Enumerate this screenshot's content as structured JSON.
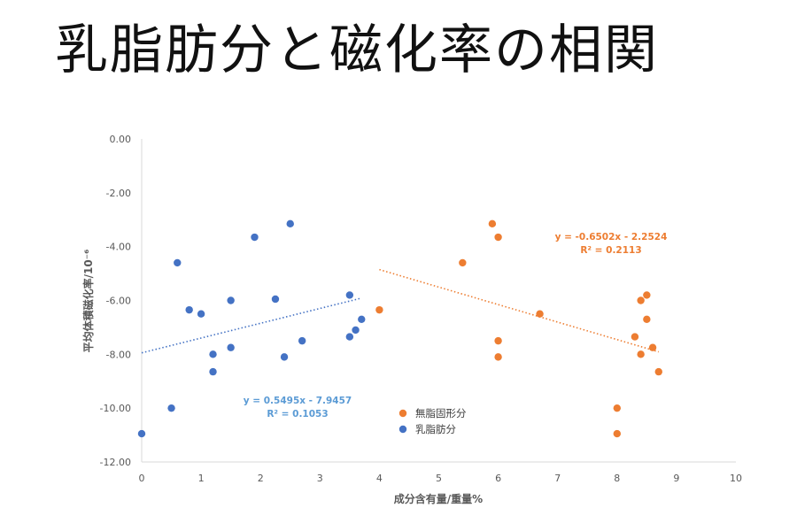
{
  "title": "乳脂肪分と磁化率の相関",
  "colors": {
    "series_milkfat": "#4472C4",
    "series_snf": "#ED7D31",
    "trend_milkfat_label": "#5B9BD5",
    "trend_snf_label": "#ED7D31",
    "axis": "#d9d9d9",
    "text": "#595959"
  },
  "chart_data": {
    "type": "scatter",
    "xlabel": "成分含有量/重量%",
    "ylabel": "平均体積磁化率/10⁻⁶",
    "xlim": [
      0,
      10
    ],
    "ylim": [
      -12,
      0
    ],
    "x_ticks": [
      "0",
      "1",
      "2",
      "3",
      "4",
      "5",
      "6",
      "7",
      "8",
      "9",
      "10"
    ],
    "y_ticks": [
      "0.00",
      "-2.00",
      "-4.00",
      "-6.00",
      "-8.00",
      "-10.00",
      "-12.00"
    ],
    "grid": false,
    "legend_position": "center-bottom",
    "series": [
      {
        "name": "無脂固形分",
        "color_key": "series_snf",
        "points": [
          [
            4.0,
            -6.35
          ],
          [
            5.4,
            -4.6
          ],
          [
            5.9,
            -3.15
          ],
          [
            6.0,
            -3.65
          ],
          [
            6.0,
            -7.5
          ],
          [
            6.0,
            -8.1
          ],
          [
            6.7,
            -6.5
          ],
          [
            8.0,
            -10.0
          ],
          [
            8.0,
            -10.95
          ],
          [
            8.3,
            -7.35
          ],
          [
            8.4,
            -6.0
          ],
          [
            8.4,
            -8.0
          ],
          [
            8.5,
            -5.8
          ],
          [
            8.5,
            -6.7
          ],
          [
            8.6,
            -7.75
          ],
          [
            8.7,
            -8.65
          ]
        ],
        "trendline": {
          "slope": -0.6502,
          "intercept": -2.2524,
          "x_range": [
            4.0,
            8.7
          ]
        },
        "equation": "y = -0.6502x - 2.2524",
        "r2": "R² = 0.2113"
      },
      {
        "name": "乳脂肪分",
        "color_key": "series_milkfat",
        "points": [
          [
            0.0,
            -10.95
          ],
          [
            0.5,
            -10.0
          ],
          [
            0.6,
            -4.6
          ],
          [
            0.8,
            -6.35
          ],
          [
            1.0,
            -6.5
          ],
          [
            1.2,
            -8.0
          ],
          [
            1.2,
            -8.65
          ],
          [
            1.5,
            -6.0
          ],
          [
            1.5,
            -7.75
          ],
          [
            1.9,
            -3.65
          ],
          [
            2.25,
            -5.95
          ],
          [
            2.4,
            -8.1
          ],
          [
            2.5,
            -3.15
          ],
          [
            2.7,
            -7.5
          ],
          [
            3.5,
            -5.8
          ],
          [
            3.5,
            -7.35
          ],
          [
            3.6,
            -7.1
          ],
          [
            3.7,
            -6.7
          ]
        ],
        "trendline": {
          "slope": 0.5495,
          "intercept": -7.9457,
          "x_range": [
            0.0,
            3.7
          ]
        },
        "equation": "y = 0.5495x - 7.9457",
        "r2": "R² = 0.1053"
      }
    ]
  }
}
